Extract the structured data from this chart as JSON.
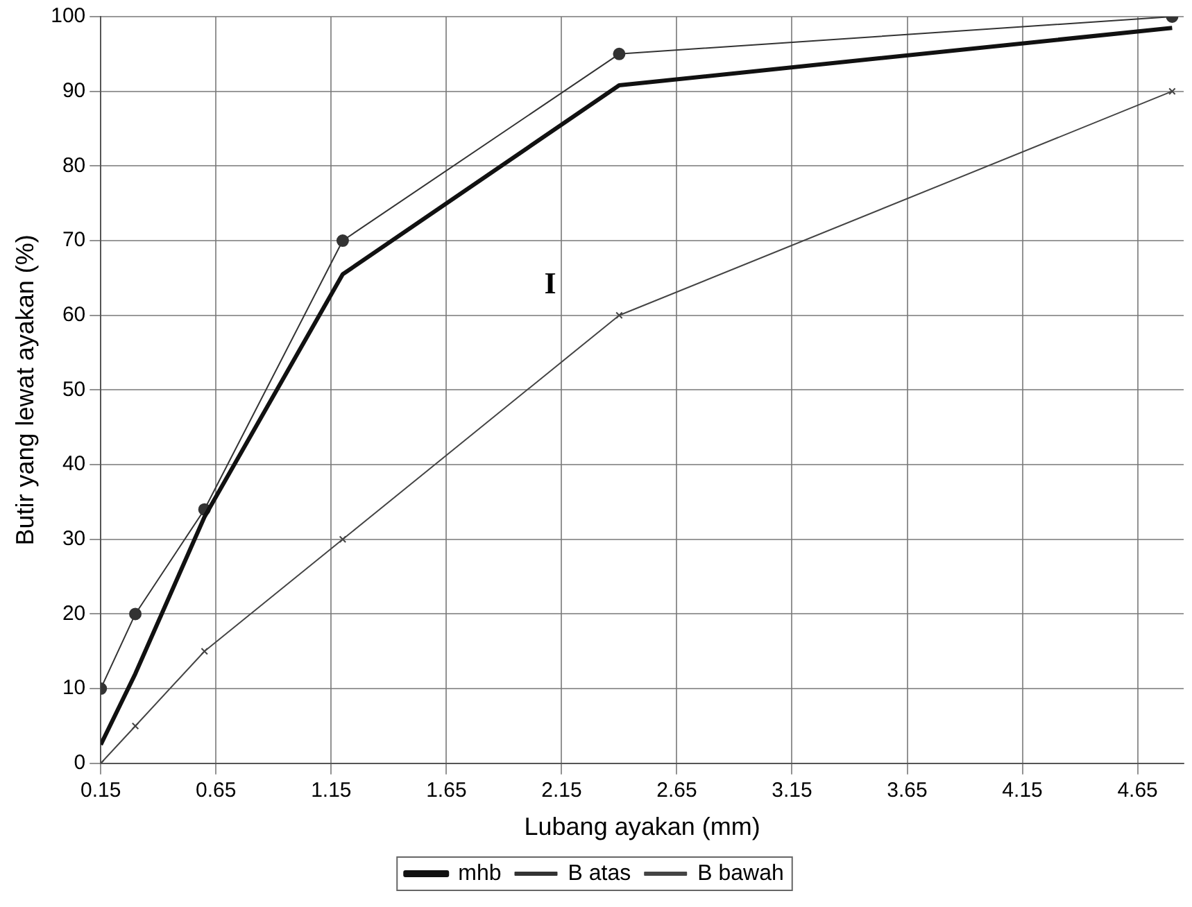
{
  "chart_data": {
    "type": "line",
    "xlabel": "Lubang ayakan (mm)",
    "ylabel": "Butir yang lewat ayakan (%)",
    "x": [
      0.15,
      0.3,
      0.6,
      1.2,
      2.4,
      4.8
    ],
    "series": [
      {
        "name": "mhb",
        "color": "#111111",
        "values": [
          2.5,
          12,
          33,
          65.5,
          90.8,
          98.5
        ],
        "marker": "none"
      },
      {
        "name": "B atas",
        "color": "#333333",
        "values": [
          10,
          20,
          34,
          70,
          95,
          100
        ],
        "marker": "circle"
      },
      {
        "name": "B bawah",
        "color": "#444444",
        "values": [
          0,
          5,
          15,
          30,
          60,
          90
        ],
        "marker": "cross"
      }
    ],
    "xlim": [
      0.15,
      4.85
    ],
    "xticks": [
      0.15,
      0.65,
      1.15,
      1.65,
      2.15,
      2.65,
      3.15,
      3.65,
      4.15,
      4.65
    ],
    "ylim": [
      0,
      100
    ],
    "yticks": [
      0,
      10,
      20,
      30,
      40,
      50,
      60,
      70,
      80,
      90,
      100
    ],
    "annotations": [
      "I"
    ],
    "grid": true,
    "legend": "bottom"
  }
}
